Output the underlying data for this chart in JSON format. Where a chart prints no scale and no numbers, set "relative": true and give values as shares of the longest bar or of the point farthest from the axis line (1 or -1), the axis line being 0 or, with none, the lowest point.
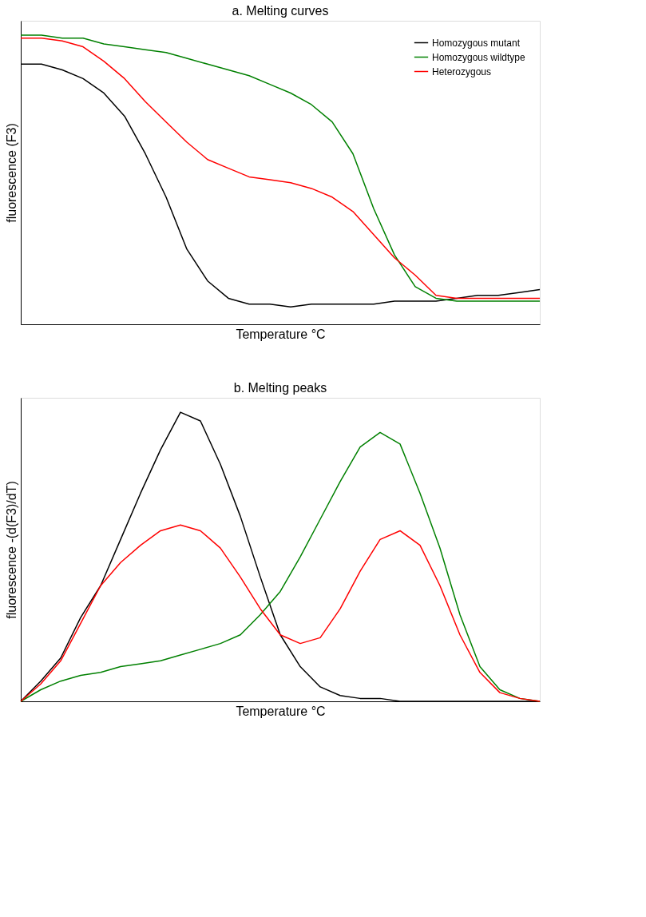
{
  "chart_data": [
    {
      "type": "line",
      "relative": true,
      "title": "a.      Melting curves",
      "xlabel": "Temperature °C",
      "ylabel": "fluorescence (F3)",
      "tick_labels": false,
      "legend": "top right",
      "categories": [
        null,
        null,
        null,
        null,
        null,
        null,
        null,
        null,
        null,
        null,
        null,
        null,
        null,
        null,
        null,
        null,
        null,
        null,
        null,
        null,
        null,
        null,
        null,
        null,
        null,
        null
      ],
      "series": [
        {
          "name": "Homozygous mutant",
          "color": "#000000",
          "values": [
            0.9,
            0.9,
            0.88,
            0.85,
            0.8,
            0.72,
            0.59,
            0.44,
            0.26,
            0.15,
            0.09,
            0.07,
            0.07,
            0.06,
            0.07,
            0.07,
            0.07,
            0.07,
            0.08,
            0.08,
            0.08,
            0.09,
            0.1,
            0.1,
            0.11,
            0.12
          ]
        },
        {
          "name": "Homozygous wildtype",
          "color": "#008000",
          "values": [
            1.0,
            1.0,
            0.99,
            0.99,
            0.97,
            0.96,
            0.95,
            0.94,
            0.92,
            0.9,
            0.88,
            0.86,
            0.83,
            0.8,
            0.76,
            0.7,
            0.59,
            0.4,
            0.24,
            0.13,
            0.09,
            0.08,
            0.08,
            0.08,
            0.08,
            0.08
          ]
        },
        {
          "name": "Heterozygous",
          "color": "#ff0000",
          "values": [
            0.99,
            0.99,
            0.98,
            0.96,
            0.91,
            0.85,
            0.77,
            0.7,
            0.63,
            0.57,
            0.54,
            0.51,
            0.5,
            0.49,
            0.47,
            0.44,
            0.39,
            0.31,
            0.23,
            0.17,
            0.1,
            0.09,
            0.09,
            0.09,
            0.09,
            0.09
          ]
        }
      ]
    },
    {
      "type": "line",
      "relative": true,
      "title": "b.      Melting peaks",
      "xlabel": "Temperature °C",
      "ylabel": "fluorescence -(d(F3)/dT)",
      "tick_labels": false,
      "categories": [
        null,
        null,
        null,
        null,
        null,
        null,
        null,
        null,
        null,
        null,
        null,
        null,
        null,
        null,
        null,
        null,
        null,
        null,
        null,
        null,
        null,
        null,
        null,
        null,
        null,
        null,
        null
      ],
      "series": [
        {
          "color": "#000000",
          "values": [
            0,
            0.07,
            0.15,
            0.29,
            0.4,
            0.56,
            0.72,
            0.87,
            1.0,
            0.97,
            0.82,
            0.64,
            0.43,
            0.23,
            0.12,
            0.05,
            0.02,
            0.01,
            0.01,
            0,
            0,
            0,
            0,
            0,
            0,
            0,
            0
          ]
        },
        {
          "color": "#008000",
          "values": [
            0,
            0.04,
            0.07,
            0.09,
            0.1,
            0.12,
            0.13,
            0.14,
            0.16,
            0.18,
            0.2,
            0.23,
            0.3,
            0.38,
            0.5,
            0.63,
            0.76,
            0.88,
            0.93,
            0.89,
            0.72,
            0.53,
            0.3,
            0.12,
            0.04,
            0.01,
            0
          ]
        },
        {
          "color": "#ff0000",
          "values": [
            0,
            0.06,
            0.14,
            0.27,
            0.4,
            0.48,
            0.54,
            0.59,
            0.61,
            0.59,
            0.53,
            0.43,
            0.32,
            0.23,
            0.2,
            0.22,
            0.32,
            0.45,
            0.56,
            0.59,
            0.54,
            0.4,
            0.23,
            0.1,
            0.03,
            0.01,
            0
          ]
        }
      ]
    }
  ]
}
